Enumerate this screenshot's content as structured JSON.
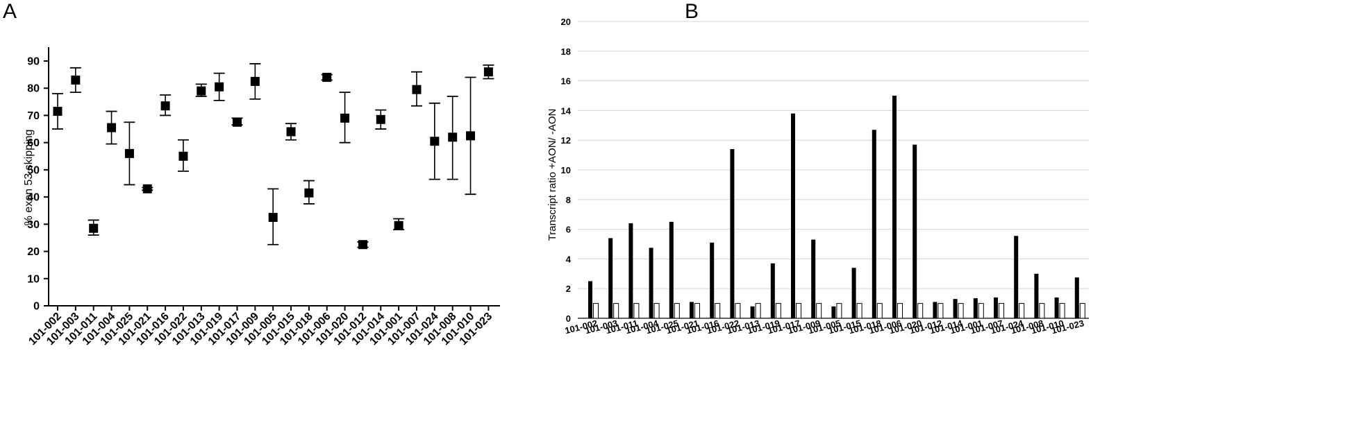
{
  "panels": {
    "a_label": "A",
    "b_label": "B"
  },
  "chart_data": [
    {
      "type": "scatter",
      "panel": "A",
      "title": "",
      "xlabel": "",
      "ylabel": "% exon 53 skipping",
      "ylim": [
        0,
        95
      ],
      "yticks": [
        0,
        10,
        20,
        30,
        40,
        50,
        60,
        70,
        80,
        90
      ],
      "grid": false,
      "marker": "filled-square",
      "error_bars": true,
      "categories": [
        "101-002",
        "101-003",
        "101-011",
        "101-004",
        "101-025",
        "101-021",
        "101-016",
        "101-022",
        "101-013",
        "101-019",
        "101-017",
        "101-009",
        "101-005",
        "101-015",
        "101-018",
        "101-006",
        "101-020",
        "101-012",
        "101-014",
        "101-001",
        "101-007",
        "101-024",
        "101-008",
        "101-010",
        "101-023"
      ],
      "values": [
        71.5,
        83,
        28.5,
        65.5,
        56,
        43,
        73.5,
        55,
        79,
        80.5,
        67.5,
        82.5,
        32.5,
        64,
        41.5,
        84,
        69,
        22.5,
        68.5,
        29.5,
        79.5,
        60.5,
        62,
        62.5,
        86
      ],
      "err_low": [
        65,
        78.5,
        26,
        59.5,
        44.5,
        42.5,
        70,
        49.5,
        77,
        75.5,
        66.5,
        76,
        22.5,
        61,
        37.5,
        83,
        60,
        21.5,
        65,
        28,
        73.5,
        46.5,
        46.5,
        41,
        83.5
      ],
      "err_high": [
        78,
        87.5,
        31.5,
        71.5,
        67.5,
        43.5,
        77.5,
        61,
        81.5,
        85.5,
        69,
        89,
        43,
        67,
        46,
        85,
        78.5,
        23.5,
        72,
        32,
        86,
        74.5,
        77,
        84,
        88.5
      ]
    },
    {
      "type": "bar",
      "panel": "B",
      "title": "",
      "xlabel": "",
      "ylabel": "Transcript ratio +AON/ -AON",
      "ylim": [
        0,
        20
      ],
      "yticks": [
        0,
        2,
        4,
        6,
        8,
        10,
        12,
        14,
        16,
        18,
        20
      ],
      "grid": true,
      "legend": "none",
      "categories": [
        "101-002",
        "101-003",
        "101-011",
        "101-004",
        "101-025",
        "101-021",
        "101-016",
        "101-022",
        "101-013",
        "101-019",
        "101-017",
        "101-009",
        "101-005",
        "101-015",
        "101-018",
        "101-006",
        "101-020",
        "101-012",
        "101-014",
        "101-001",
        "101-007",
        "101-024",
        "101-008",
        "101-010",
        "101-023"
      ],
      "series": [
        {
          "color": "#000000",
          "values": [
            2.5,
            5.4,
            6.4,
            4.75,
            6.5,
            1.1,
            5.1,
            11.4,
            0.8,
            3.7,
            13.8,
            5.3,
            0.8,
            3.4,
            12.7,
            15.0,
            11.7,
            1.1,
            1.3,
            1.35,
            1.4,
            5.55,
            3.0,
            1.4,
            2.75
          ]
        },
        {
          "color": "#ffffff",
          "values": [
            1,
            1,
            1,
            1,
            1,
            1,
            1,
            1,
            1,
            1,
            1,
            1,
            1,
            1,
            1,
            1,
            1,
            1,
            1,
            1,
            1,
            1,
            1,
            1,
            1
          ]
        }
      ]
    }
  ]
}
